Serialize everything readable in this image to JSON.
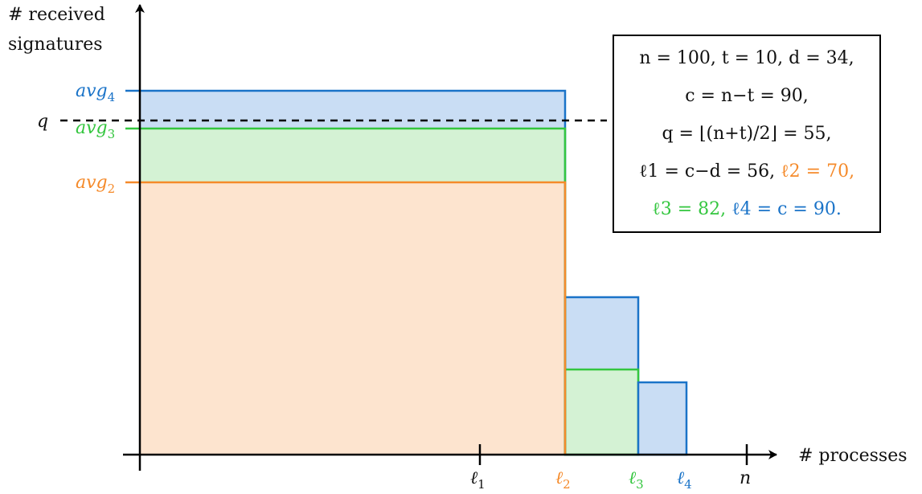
{
  "axes": {
    "y_label_line1": "# received",
    "y_label_line2": "signatures",
    "x_label": "# processes"
  },
  "levels": {
    "q": "q",
    "avg4": "avg4",
    "avg3": "avg3",
    "avg2": "avg2"
  },
  "x_ticks": {
    "l1": "ℓ1",
    "l2": "ℓ2",
    "l3": "ℓ3",
    "l4": "ℓ4",
    "n": "n"
  },
  "params": {
    "line1": "n = 100, t = 10, d = 34,",
    "line2": "c = n−t = 90,",
    "line3": "q = ⌊(n+t)/2⌋ = 55,",
    "line4_black": "ℓ1 = c−d = 56,",
    "line4_orange": "ℓ2 = 70,",
    "line5_green": "ℓ3 = 82,",
    "line5_blue": "ℓ4 = c = 90."
  },
  "colors": {
    "orange": "#f58a2a",
    "orange_fill": "#fde4cf",
    "green": "#34c63f",
    "green_fill": "#d4f2d4",
    "blue": "#1a73c8",
    "blue_fill": "#c9ddf4",
    "text": "#111111"
  }
}
